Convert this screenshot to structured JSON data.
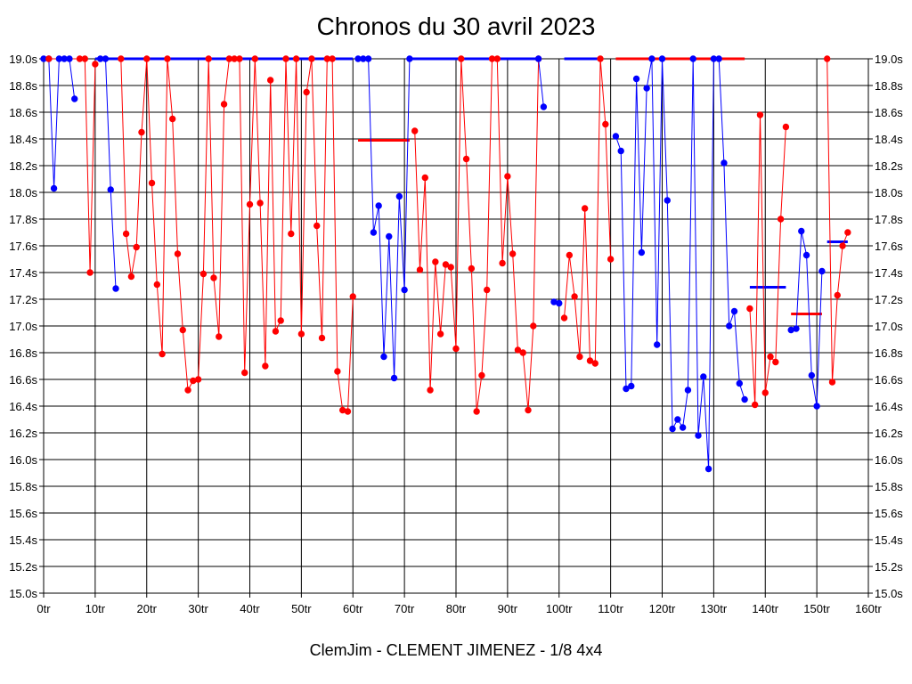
{
  "chart_data": {
    "type": "line",
    "title": "Chronos du 30 avril 2023",
    "footer": "ClemJim - CLEMENT JIMENEZ - 1/8 4x4",
    "xlim": [
      0,
      160
    ],
    "ylim": [
      15.0,
      19.0
    ],
    "x_ticks": [
      0,
      10,
      20,
      30,
      40,
      50,
      60,
      70,
      80,
      90,
      100,
      110,
      120,
      130,
      140,
      150,
      160
    ],
    "x_tick_labels": [
      "0tr",
      "10tr",
      "20tr",
      "30tr",
      "40tr",
      "50tr",
      "60tr",
      "70tr",
      "80tr",
      "90tr",
      "100tr",
      "110tr",
      "120tr",
      "130tr",
      "140tr",
      "150tr",
      "160tr"
    ],
    "y_ticks": [
      15.0,
      15.2,
      15.4,
      15.6,
      15.8,
      16.0,
      16.2,
      16.4,
      16.6,
      16.8,
      17.0,
      17.2,
      17.4,
      17.6,
      17.8,
      18.0,
      18.2,
      18.4,
      18.6,
      18.8,
      19.0
    ],
    "y_tick_labels": [
      "15.0s",
      "15.2s",
      "15.4s",
      "15.6s",
      "15.8s",
      "16.0s",
      "16.2s",
      "16.4s",
      "16.6s",
      "16.8s",
      "17.0s",
      "17.2s",
      "17.4s",
      "17.6s",
      "17.8s",
      "18.0s",
      "18.2s",
      "18.4s",
      "18.6s",
      "18.8s",
      "19.0s"
    ],
    "grid": true,
    "colors": {
      "blue": "#0000ff",
      "red": "#ff0000",
      "grid": "#000000"
    },
    "series": [
      {
        "color": "#0000ff",
        "points": [
          [
            0,
            19.0
          ],
          [
            1,
            19.0
          ],
          [
            2,
            18.03
          ],
          [
            3,
            19.0
          ],
          [
            4,
            19.0
          ],
          [
            5,
            19.0
          ],
          [
            6,
            18.7
          ]
        ]
      },
      {
        "color": "#ff0000",
        "points": [
          [
            1,
            19.0
          ],
          [
            7,
            19.0
          ],
          [
            8,
            19.0
          ],
          [
            9,
            17.4
          ],
          [
            10,
            18.96
          ]
        ]
      },
      {
        "color": "#0000ff",
        "points": [
          [
            11,
            19.0
          ],
          [
            12,
            19.0
          ],
          [
            13,
            18.02
          ],
          [
            14,
            17.28
          ]
        ]
      },
      {
        "color": "#ff0000",
        "points": [
          [
            15,
            19.0
          ],
          [
            16,
            17.69
          ],
          [
            17,
            17.37
          ],
          [
            18,
            17.59
          ],
          [
            19,
            18.45
          ],
          [
            20,
            19.0
          ],
          [
            21,
            18.07
          ],
          [
            22,
            17.31
          ],
          [
            23,
            16.79
          ],
          [
            24,
            19.0
          ],
          [
            25,
            18.55
          ],
          [
            26,
            17.54
          ],
          [
            27,
            16.97
          ],
          [
            28,
            16.52
          ],
          [
            29,
            16.59
          ],
          [
            30,
            16.6
          ],
          [
            31,
            17.39
          ],
          [
            32,
            19.0
          ],
          [
            33,
            17.36
          ],
          [
            34,
            16.92
          ],
          [
            35,
            18.66
          ],
          [
            36,
            19.0
          ],
          [
            37,
            19.0
          ],
          [
            38,
            19.0
          ],
          [
            39,
            16.65
          ],
          [
            40,
            17.91
          ],
          [
            41,
            19.0
          ],
          [
            42,
            17.92
          ],
          [
            43,
            16.7
          ],
          [
            44,
            18.84
          ],
          [
            45,
            16.96
          ],
          [
            46,
            17.04
          ],
          [
            47,
            19.0
          ],
          [
            48,
            17.69
          ],
          [
            49,
            19.0
          ],
          [
            50,
            16.94
          ],
          [
            51,
            18.75
          ],
          [
            52,
            19.0
          ],
          [
            53,
            17.75
          ],
          [
            54,
            16.91
          ],
          [
            55,
            19.0
          ],
          [
            56,
            19.0
          ],
          [
            57,
            16.66
          ],
          [
            58,
            16.37
          ],
          [
            59,
            16.36
          ],
          [
            60,
            17.22
          ]
        ]
      },
      {
        "color": "#0000ff",
        "points": [
          [
            61,
            19.0
          ],
          [
            62,
            19.0
          ],
          [
            63,
            19.0
          ],
          [
            64,
            17.7
          ],
          [
            65,
            17.9
          ],
          [
            66,
            16.77
          ],
          [
            67,
            17.67
          ],
          [
            68,
            16.61
          ],
          [
            69,
            17.97
          ],
          [
            70,
            17.27
          ],
          [
            71,
            19.0
          ]
        ]
      },
      {
        "color": "#ff0000",
        "points": [
          [
            72,
            18.46
          ],
          [
            73,
            17.42
          ],
          [
            74,
            18.11
          ],
          [
            75,
            16.52
          ],
          [
            76,
            17.48
          ],
          [
            77,
            16.94
          ],
          [
            78,
            17.46
          ],
          [
            79,
            17.44
          ],
          [
            80,
            16.83
          ],
          [
            81,
            19.0
          ],
          [
            82,
            18.25
          ],
          [
            83,
            17.43
          ],
          [
            84,
            16.36
          ],
          [
            85,
            16.63
          ],
          [
            86,
            17.27
          ],
          [
            87,
            19.0
          ],
          [
            88,
            19.0
          ],
          [
            89,
            17.47
          ],
          [
            90,
            18.12
          ],
          [
            91,
            17.54
          ],
          [
            92,
            16.82
          ],
          [
            93,
            16.8
          ],
          [
            94,
            16.37
          ],
          [
            95,
            17.0
          ],
          [
            96,
            19.0
          ]
        ]
      },
      {
        "color": "#0000ff",
        "points": [
          [
            96,
            19.0
          ],
          [
            97,
            18.64
          ]
        ]
      },
      {
        "color": "#0000ff",
        "points": [
          [
            99,
            17.18
          ],
          [
            100,
            17.17
          ]
        ]
      },
      {
        "color": "#ff0000",
        "points": [
          [
            101,
            17.06
          ],
          [
            102,
            17.53
          ],
          [
            103,
            17.22
          ],
          [
            104,
            16.77
          ],
          [
            105,
            17.88
          ],
          [
            106,
            16.74
          ],
          [
            107,
            16.72
          ],
          [
            108,
            19.0
          ],
          [
            109,
            18.51
          ],
          [
            110,
            17.5
          ]
        ]
      },
      {
        "color": "#0000ff",
        "points": [
          [
            111,
            18.42
          ],
          [
            112,
            18.31
          ],
          [
            113,
            16.53
          ],
          [
            114,
            16.55
          ],
          [
            115,
            18.85
          ],
          [
            116,
            17.55
          ],
          [
            117,
            18.78
          ],
          [
            118,
            19.0
          ],
          [
            119,
            16.86
          ],
          [
            120,
            19.0
          ],
          [
            121,
            17.94
          ],
          [
            122,
            16.23
          ],
          [
            123,
            16.3
          ],
          [
            124,
            16.24
          ],
          [
            125,
            16.52
          ],
          [
            126,
            19.0
          ],
          [
            127,
            16.18
          ],
          [
            128,
            16.62
          ],
          [
            129,
            15.93
          ],
          [
            130,
            19.0
          ],
          [
            131,
            19.0
          ],
          [
            132,
            18.22
          ],
          [
            133,
            17.0
          ],
          [
            134,
            17.11
          ],
          [
            135,
            16.57
          ],
          [
            136,
            16.45
          ]
        ]
      },
      {
        "color": "#ff0000",
        "points": [
          [
            137,
            17.13
          ],
          [
            138,
            16.41
          ],
          [
            139,
            18.58
          ],
          [
            140,
            16.5
          ],
          [
            141,
            16.77
          ],
          [
            142,
            16.73
          ],
          [
            143,
            17.8
          ],
          [
            144,
            18.49
          ]
        ]
      },
      {
        "color": "#0000ff",
        "points": [
          [
            145,
            16.97
          ],
          [
            146,
            16.98
          ],
          [
            147,
            17.71
          ],
          [
            148,
            17.53
          ],
          [
            149,
            16.63
          ],
          [
            150,
            16.4
          ],
          [
            151,
            17.41
          ]
        ]
      },
      {
        "color": "#ff0000",
        "points": [
          [
            152,
            19.0
          ],
          [
            153,
            16.58
          ],
          [
            154,
            17.23
          ],
          [
            155,
            17.6
          ],
          [
            156,
            17.7
          ]
        ]
      }
    ],
    "segments": [
      {
        "color": "#0000ff",
        "x1": 10,
        "x2": 60,
        "y": 19.0
      },
      {
        "color": "#0000ff",
        "x1": 71,
        "x2": 96,
        "y": 19.0
      },
      {
        "color": "#0000ff",
        "x1": 101,
        "x2": 108,
        "y": 19.0
      },
      {
        "color": "#ff0000",
        "x1": 111,
        "x2": 136,
        "y": 19.0
      },
      {
        "color": "#ff0000",
        "x1": 61,
        "x2": 71,
        "y": 18.39
      },
      {
        "color": "#0000ff",
        "x1": 137,
        "x2": 144,
        "y": 17.29
      },
      {
        "color": "#ff0000",
        "x1": 145,
        "x2": 151,
        "y": 17.09
      },
      {
        "color": "#0000ff",
        "x1": 152,
        "x2": 156,
        "y": 17.63
      }
    ]
  }
}
